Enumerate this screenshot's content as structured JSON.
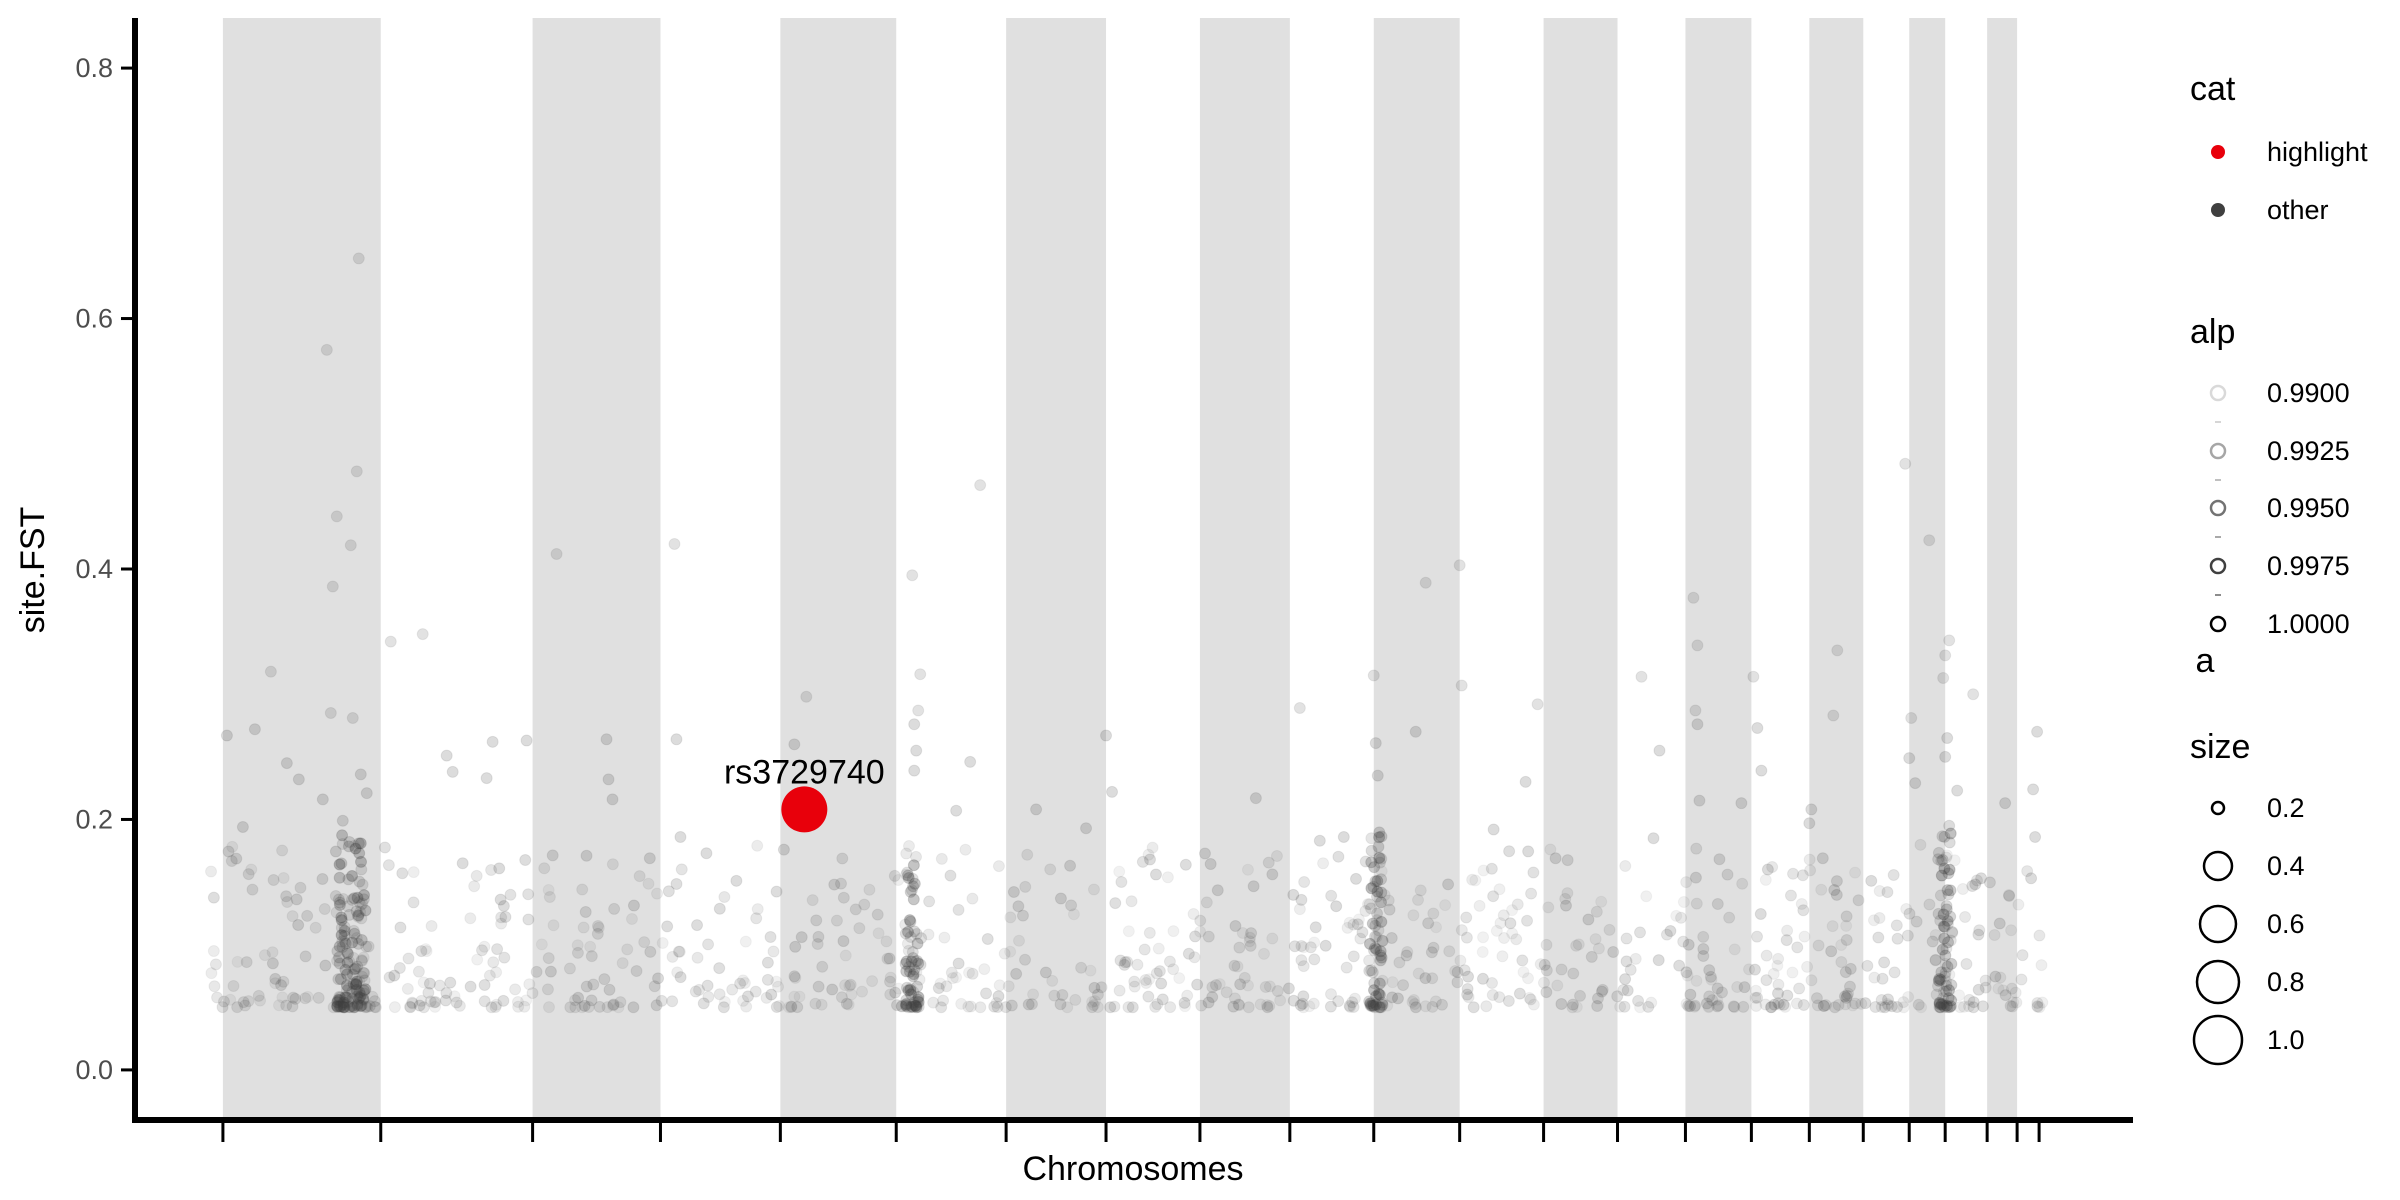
{
  "chart_data": {
    "type": "scatter",
    "title": "",
    "xlabel": "Chromosomes",
    "ylabel": "site.FST",
    "ylim": [
      -0.04,
      0.84
    ],
    "yticks": [
      "0.0",
      "0.2",
      "0.4",
      "0.6",
      "0.8"
    ],
    "ytick_values": [
      0.0,
      0.2,
      0.4,
      0.6,
      0.8
    ],
    "x_domain": [
      0,
      100
    ],
    "chromosome_bands": [
      [
        4.4,
        12.3
      ],
      [
        19.9,
        26.3
      ],
      [
        32.3,
        38.1
      ],
      [
        43.6,
        48.6
      ],
      [
        53.3,
        57.8
      ],
      [
        62.0,
        66.3
      ],
      [
        70.5,
        74.2
      ],
      [
        77.6,
        80.9
      ],
      [
        83.8,
        86.5
      ],
      [
        88.8,
        90.6
      ],
      [
        92.7,
        94.2
      ]
    ],
    "x_tick_positions": [
      4.4,
      12.3,
      19.9,
      26.3,
      32.3,
      38.1,
      43.6,
      48.6,
      53.3,
      57.8,
      62.0,
      66.3,
      70.5,
      74.2,
      77.6,
      80.9,
      83.8,
      86.5,
      88.8,
      90.6,
      92.7,
      94.2,
      95.3
    ],
    "highlight": {
      "label": "rs3729740",
      "x": 33.5,
      "y": 0.208
    },
    "other_points": [
      [
        4.6,
        0.267
      ],
      [
        5.4,
        0.194
      ],
      [
        6.0,
        0.272
      ],
      [
        6.8,
        0.318
      ],
      [
        7.6,
        0.245
      ],
      [
        8.2,
        0.232
      ],
      [
        9.6,
        0.575
      ],
      [
        10.1,
        0.442
      ],
      [
        9.9,
        0.386
      ],
      [
        10.8,
        0.419
      ],
      [
        11.2,
        0.648
      ],
      [
        11.1,
        0.478
      ],
      [
        9.8,
        0.285
      ],
      [
        10.9,
        0.281
      ],
      [
        9.4,
        0.216
      ],
      [
        11.3,
        0.236
      ],
      [
        10.4,
        0.199
      ],
      [
        11.6,
        0.221
      ],
      [
        12.8,
        0.342
      ],
      [
        14.4,
        0.348
      ],
      [
        15.6,
        0.251
      ],
      [
        15.9,
        0.238
      ],
      [
        16.4,
        0.165
      ],
      [
        17.9,
        0.262
      ],
      [
        17.6,
        0.233
      ],
      [
        18.3,
        0.136
      ],
      [
        19.6,
        0.263
      ],
      [
        21.1,
        0.412
      ],
      [
        22.6,
        0.171
      ],
      [
        23.6,
        0.264
      ],
      [
        23.7,
        0.232
      ],
      [
        23.9,
        0.216
      ],
      [
        27.0,
        0.42
      ],
      [
        27.1,
        0.264
      ],
      [
        27.3,
        0.186
      ],
      [
        28.6,
        0.173
      ],
      [
        30.1,
        0.151
      ],
      [
        33.0,
        0.26
      ],
      [
        33.6,
        0.298
      ],
      [
        35.0,
        0.148
      ],
      [
        38.9,
        0.395
      ],
      [
        39.0,
        0.276
      ],
      [
        39.3,
        0.316
      ],
      [
        39.1,
        0.255
      ],
      [
        39.0,
        0.239
      ],
      [
        39.2,
        0.287
      ],
      [
        41.1,
        0.207
      ],
      [
        42.3,
        0.467
      ],
      [
        41.8,
        0.246
      ],
      [
        45.1,
        0.208
      ],
      [
        46.8,
        0.163
      ],
      [
        47.6,
        0.193
      ],
      [
        48.6,
        0.267
      ],
      [
        48.9,
        0.222
      ],
      [
        50.8,
        0.168
      ],
      [
        51.1,
        0.156
      ],
      [
        58.3,
        0.289
      ],
      [
        56.1,
        0.217
      ],
      [
        59.3,
        0.183
      ],
      [
        60.5,
        0.186
      ],
      [
        62.0,
        0.315
      ],
      [
        62.1,
        0.261
      ],
      [
        62.2,
        0.235
      ],
      [
        64.1,
        0.27
      ],
      [
        64.6,
        0.389
      ],
      [
        66.3,
        0.403
      ],
      [
        66.4,
        0.307
      ],
      [
        68.0,
        0.192
      ],
      [
        70.2,
        0.292
      ],
      [
        69.6,
        0.23
      ],
      [
        71.1,
        0.169
      ],
      [
        76.0,
        0.185
      ],
      [
        75.4,
        0.314
      ],
      [
        76.3,
        0.255
      ],
      [
        78.0,
        0.377
      ],
      [
        78.2,
        0.339
      ],
      [
        78.1,
        0.287
      ],
      [
        78.2,
        0.276
      ],
      [
        78.3,
        0.215
      ],
      [
        81.0,
        0.314
      ],
      [
        81.2,
        0.273
      ],
      [
        81.4,
        0.239
      ],
      [
        80.4,
        0.213
      ],
      [
        83.9,
        0.208
      ],
      [
        83.8,
        0.197
      ],
      [
        85.2,
        0.335
      ],
      [
        85.0,
        0.283
      ],
      [
        86.9,
        0.151
      ],
      [
        88.6,
        0.484
      ],
      [
        88.9,
        0.281
      ],
      [
        89.8,
        0.423
      ],
      [
        88.8,
        0.249
      ],
      [
        89.1,
        0.229
      ],
      [
        90.8,
        0.343
      ],
      [
        90.6,
        0.331
      ],
      [
        90.5,
        0.313
      ],
      [
        90.7,
        0.265
      ],
      [
        90.6,
        0.25
      ],
      [
        90.8,
        0.195
      ],
      [
        91.2,
        0.223
      ],
      [
        92.0,
        0.3
      ],
      [
        92.4,
        0.153
      ],
      [
        93.6,
        0.213
      ],
      [
        93.8,
        0.139
      ],
      [
        95.2,
        0.27
      ],
      [
        95.0,
        0.224
      ],
      [
        95.1,
        0.186
      ],
      [
        94.9,
        0.153
      ]
    ],
    "legend": [
      {
        "title": "cat",
        "entries": [
          "highlight",
          "other"
        ]
      },
      {
        "title": "alp",
        "entries": [
          "0.9900",
          "0.9925",
          "0.9950",
          "0.9975",
          "1.0000"
        ],
        "subtitle": "a"
      },
      {
        "title": "size",
        "entries": [
          "0.2",
          "0.4",
          "0.6",
          "0.8",
          "1.0"
        ]
      }
    ],
    "colors": {
      "highlight": "#e8000b",
      "other": "#3f3f3f",
      "band": "#e0e0e0",
      "axis": "#000000"
    },
    "legend_placement": "right"
  }
}
